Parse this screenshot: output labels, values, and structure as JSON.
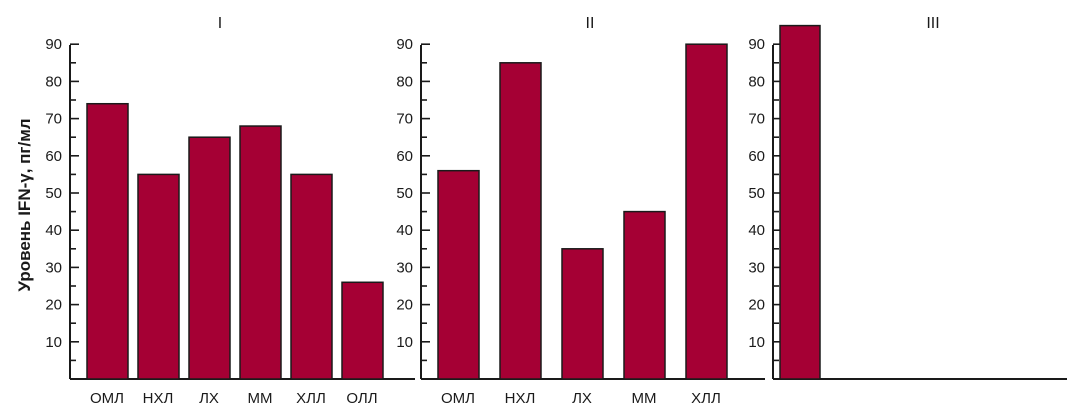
{
  "colors": {
    "bar": "#a50034",
    "axis": "#1a1a1a"
  },
  "chart_data": {
    "type": "bar",
    "ylabel": "Уровень IFN-γ, пг/мл",
    "yticks": [
      "10",
      "20",
      "30",
      "40",
      "50",
      "60",
      "70",
      "80",
      "90"
    ],
    "ylim": [
      0,
      90
    ],
    "grid": false,
    "panels": [
      {
        "title": "I",
        "categories": [
          "ОМЛ",
          "НХЛ",
          "ЛХ",
          "ММ",
          "ХЛЛ",
          "ОЛЛ"
        ],
        "values": [
          74,
          55,
          65,
          68,
          55,
          26
        ]
      },
      {
        "title": "II",
        "categories": [
          "ОМЛ",
          "НХЛ",
          "ЛХ",
          "ММ",
          "ХЛЛ"
        ],
        "values": [
          56,
          85,
          35,
          45,
          90
        ]
      },
      {
        "title": "III",
        "categories": [
          ""
        ],
        "values": [
          95
        ]
      }
    ]
  }
}
